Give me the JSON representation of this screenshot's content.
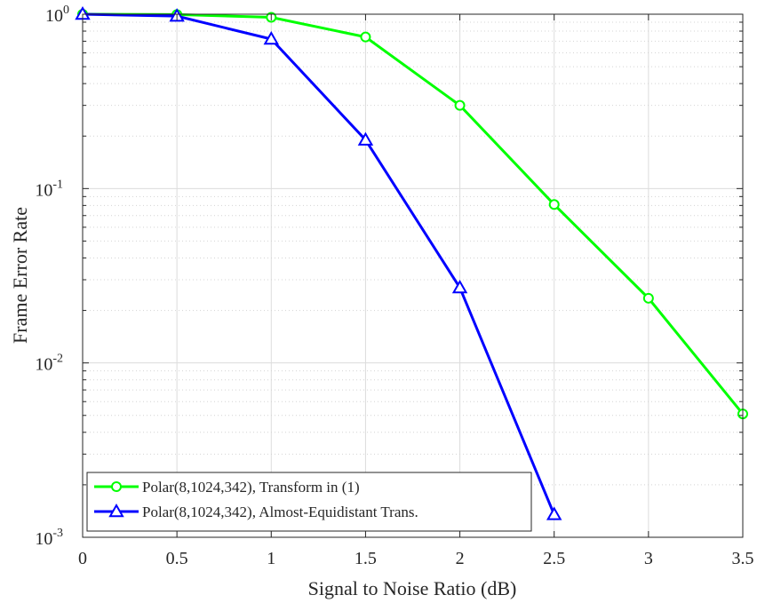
{
  "chart_data": {
    "type": "line",
    "title": "",
    "xlabel": "Signal to Noise Ratio (dB)",
    "ylabel": "Frame Error Rate",
    "xlim": [
      0,
      3.5
    ],
    "ylim": [
      0.001,
      1
    ],
    "yscale": "log",
    "grid": true,
    "legend_position": "bottom-left",
    "x_ticks": [
      "0",
      "0.5",
      "1",
      "1.5",
      "2",
      "2.5",
      "3",
      "3.5"
    ],
    "y_ticks": [
      {
        "base": "10",
        "exp": "0"
      },
      {
        "base": "10",
        "exp": "-1"
      },
      {
        "base": "10",
        "exp": "-2"
      },
      {
        "base": "10",
        "exp": "-3"
      }
    ],
    "series": [
      {
        "name": "Polar(8,1024,342), Transform in (1)",
        "color": "#00ff00",
        "marker": "circle",
        "x": [
          0,
          0.5,
          1,
          1.5,
          2,
          2.5,
          3,
          3.5
        ],
        "y": [
          1.0,
          0.995,
          0.96,
          0.74,
          0.3,
          0.081,
          0.0235,
          0.0051
        ]
      },
      {
        "name": "Polar(8,1024,342), Almost-Equidistant Trans.",
        "color": "#0000ff",
        "marker": "triangle",
        "x": [
          0,
          0.5,
          1,
          1.5,
          2,
          2.5
        ],
        "y": [
          1.0,
          0.975,
          0.72,
          0.19,
          0.027,
          0.00135
        ]
      }
    ]
  }
}
